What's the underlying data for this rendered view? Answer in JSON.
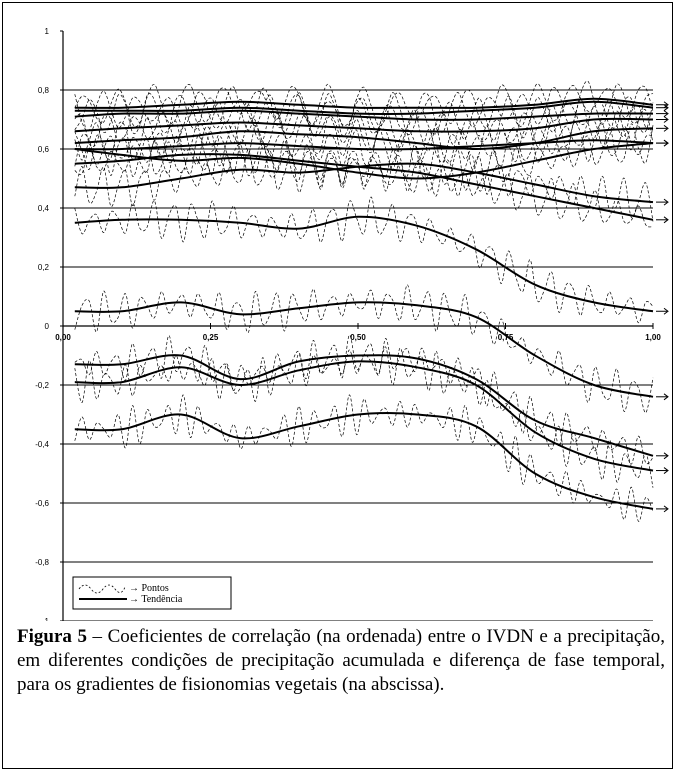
{
  "chart_data": {
    "type": "line",
    "ylim": [
      -1,
      1
    ],
    "xlim": [
      0,
      1
    ],
    "y_ticks": [
      "1",
      "0,8",
      "0,6",
      "0,4",
      "0,2",
      "0",
      "-0,2",
      "-0,4",
      "-0,6",
      "-0,8",
      "-1"
    ],
    "x_ticks": [
      "0,00",
      "0,25",
      "0,50",
      "0,75",
      "1,00"
    ],
    "grid": "horizontal",
    "legend": {
      "placement": "bottom-left",
      "entries": [
        {
          "label": "→ Pontos",
          "style": "dashed"
        },
        {
          "label": "→ Tendência",
          "style": "solid"
        }
      ]
    },
    "x": [
      0.02,
      0.1,
      0.2,
      0.3,
      0.4,
      0.5,
      0.6,
      0.7,
      0.8,
      0.9,
      1.0
    ],
    "series": [
      {
        "values": [
          0.74,
          0.74,
          0.75,
          0.76,
          0.75,
          0.74,
          0.74,
          0.74,
          0.75,
          0.77,
          0.75
        ]
      },
      {
        "values": [
          0.73,
          0.73,
          0.73,
          0.74,
          0.73,
          0.72,
          0.72,
          0.73,
          0.74,
          0.76,
          0.74
        ]
      },
      {
        "values": [
          0.71,
          0.72,
          0.72,
          0.73,
          0.72,
          0.71,
          0.7,
          0.7,
          0.71,
          0.72,
          0.72
        ]
      },
      {
        "values": [
          0.66,
          0.67,
          0.68,
          0.69,
          0.68,
          0.67,
          0.66,
          0.66,
          0.67,
          0.7,
          0.7
        ]
      },
      {
        "values": [
          0.62,
          0.63,
          0.64,
          0.66,
          0.65,
          0.64,
          0.62,
          0.6,
          0.62,
          0.66,
          0.67
        ]
      },
      {
        "values": [
          0.6,
          0.6,
          0.61,
          0.62,
          0.61,
          0.6,
          0.6,
          0.61,
          0.62,
          0.63,
          0.62
        ]
      },
      {
        "values": [
          0.6,
          0.58,
          0.56,
          0.57,
          0.55,
          0.52,
          0.5,
          0.52,
          0.56,
          0.6,
          0.62
        ]
      },
      {
        "values": [
          0.55,
          0.56,
          0.58,
          0.58,
          0.56,
          0.54,
          0.52,
          0.48,
          0.44,
          0.4,
          0.36
        ]
      },
      {
        "values": [
          0.47,
          0.47,
          0.5,
          0.53,
          0.52,
          0.54,
          0.55,
          0.52,
          0.48,
          0.44,
          0.42
        ]
      },
      {
        "values": [
          0.35,
          0.36,
          0.36,
          0.35,
          0.33,
          0.37,
          0.34,
          0.26,
          0.14,
          0.08,
          0.05
        ]
      },
      {
        "values": [
          0.05,
          0.05,
          0.08,
          0.04,
          0.06,
          0.08,
          0.07,
          0.03,
          -0.1,
          -0.2,
          -0.24
        ]
      },
      {
        "values": [
          -0.13,
          -0.13,
          -0.1,
          -0.18,
          -0.12,
          -0.1,
          -0.11,
          -0.18,
          -0.32,
          -0.38,
          -0.44
        ]
      },
      {
        "values": [
          -0.19,
          -0.19,
          -0.14,
          -0.2,
          -0.15,
          -0.12,
          -0.14,
          -0.2,
          -0.36,
          -0.45,
          -0.49
        ]
      },
      {
        "values": [
          -0.35,
          -0.35,
          -0.3,
          -0.38,
          -0.34,
          -0.3,
          -0.3,
          -0.34,
          -0.5,
          -0.58,
          -0.62
        ]
      }
    ]
  },
  "caption": {
    "label": "Figura 5",
    "text": " – Coeficientes de correlação (na ordenada) entre o IVDN e a precipitação, em diferentes condições de precipitação acumulada e diferença de fase temporal, para os gradientes de fisionomias vegetais (na abscissa)."
  }
}
